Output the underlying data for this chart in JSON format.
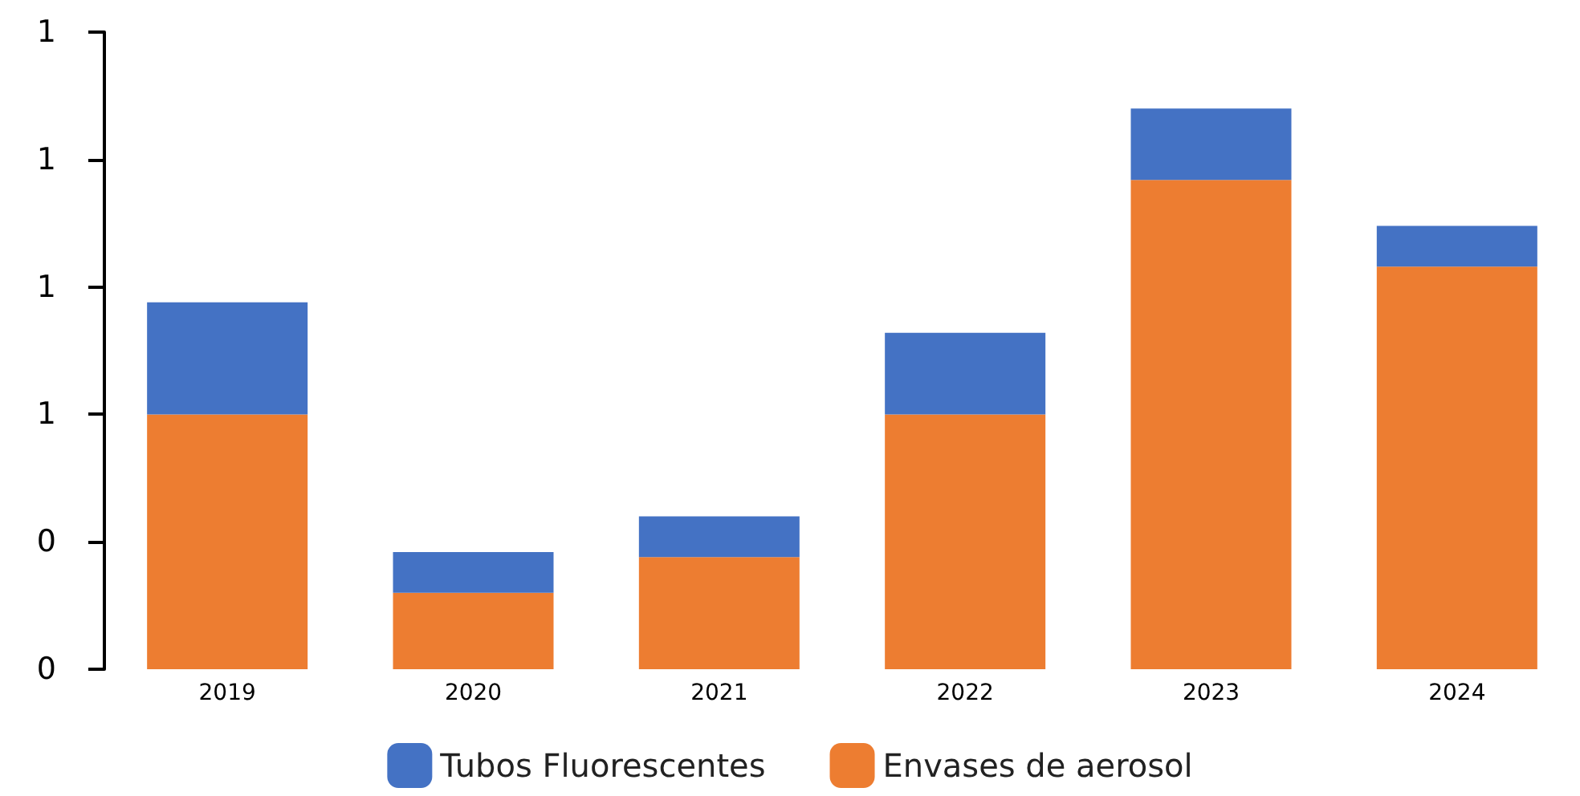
{
  "chart_data": {
    "type": "bar",
    "stacked": true,
    "categories": [
      "2019",
      "2020",
      "2021",
      "2022",
      "2023",
      "2024"
    ],
    "series": [
      {
        "name": "Envases de aerosol",
        "color": "#ed7d31",
        "values": [
          0.5,
          0.15,
          0.22,
          0.5,
          0.96,
          0.79
        ]
      },
      {
        "name": "Tubos Fluorescentes",
        "color": "#4472c4",
        "values": [
          0.22,
          0.08,
          0.08,
          0.16,
          0.14,
          0.08
        ]
      }
    ],
    "ylim": [
      0,
      1.25
    ],
    "yticks": [
      {
        "value": 0,
        "label": "0"
      },
      {
        "value": 0.25,
        "label": "0"
      },
      {
        "value": 0.5,
        "label": "1"
      },
      {
        "value": 0.75,
        "label": "1"
      },
      {
        "value": 1,
        "label": "1"
      },
      {
        "value": 1.25,
        "label": "1"
      }
    ],
    "grid": false,
    "legend": "bottom"
  }
}
